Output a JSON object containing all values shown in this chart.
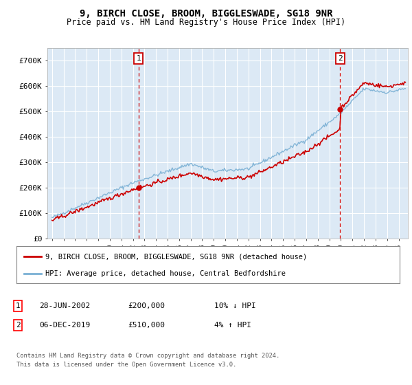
{
  "title": "9, BIRCH CLOSE, BROOM, BIGGLESWADE, SG18 9NR",
  "subtitle": "Price paid vs. HM Land Registry's House Price Index (HPI)",
  "background_color": "#dce9f5",
  "grid_color": "#ffffff",
  "ylim": [
    0,
    750000
  ],
  "yticks": [
    0,
    100000,
    200000,
    300000,
    400000,
    500000,
    600000,
    700000
  ],
  "ytick_labels": [
    "£0",
    "£100K",
    "£200K",
    "£300K",
    "£400K",
    "£500K",
    "£600K",
    "£700K"
  ],
  "purchase1_x": 2002.49,
  "purchase1_price": 200000,
  "purchase2_x": 2019.92,
  "purchase2_price": 510000,
  "legend_property": "9, BIRCH CLOSE, BROOM, BIGGLESWADE, SG18 9NR (detached house)",
  "legend_hpi": "HPI: Average price, detached house, Central Bedfordshire",
  "footnote": "Contains HM Land Registry data © Crown copyright and database right 2024.\nThis data is licensed under the Open Government Licence v3.0.",
  "annotation1_date": "28-JUN-2002",
  "annotation1_price": "£200,000",
  "annotation1_pct": "10% ↓ HPI",
  "annotation2_date": "06-DEC-2019",
  "annotation2_price": "£510,000",
  "annotation2_pct": "4% ↑ HPI",
  "prop_color": "#cc0000",
  "hpi_color": "#7ab0d4",
  "marker_color": "#cc0000",
  "dashed_color": "#cc0000",
  "xlim_left": 1994.6,
  "xlim_right": 2025.8
}
